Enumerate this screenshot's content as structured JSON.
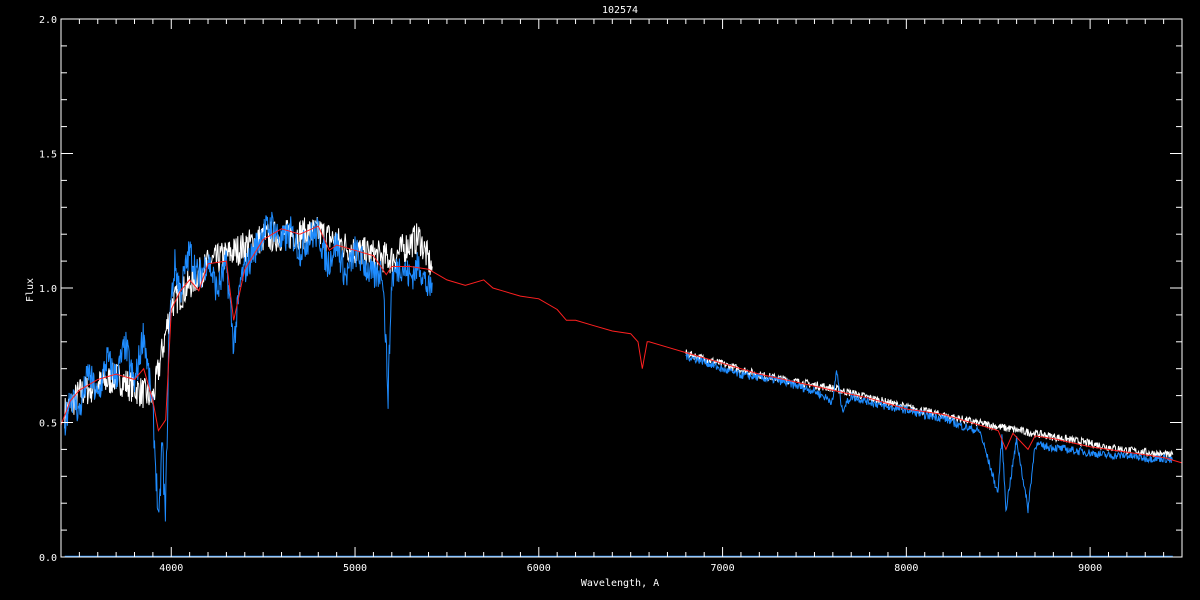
{
  "chart_data": {
    "type": "line",
    "title": "102574",
    "xlabel": "Wavelength, A",
    "ylabel": "Flux",
    "xlim": [
      3400,
      9500
    ],
    "ylim": [
      0.0,
      2.0
    ],
    "x_ticks": [
      4000,
      5000,
      6000,
      7000,
      8000,
      9000
    ],
    "x_tick_labels": [
      "4000",
      "5000",
      "6000",
      "7000",
      "8000",
      "9000"
    ],
    "x_minor_step": 100,
    "y_ticks": [
      0.0,
      0.5,
      1.0,
      1.5,
      2.0
    ],
    "y_tick_labels": [
      "0.0",
      "0.5",
      "1.0",
      "1.5",
      "2.0"
    ],
    "y_minor_step": 0.1,
    "grid": false,
    "background": "#000000",
    "series": [
      {
        "color": "#ffffff",
        "segments": [
          [
            [
              3420,
              0.55
            ],
            [
              3500,
              0.62
            ],
            [
              3700,
              0.68
            ],
            [
              3900,
              0.6
            ],
            [
              4000,
              0.95
            ],
            [
              4200,
              1.1
            ],
            [
              4500,
              1.2
            ],
            [
              4800,
              1.22
            ],
            [
              5000,
              1.15
            ],
            [
              5200,
              1.12
            ],
            [
              5300,
              1.18
            ],
            [
              5350,
              1.2
            ],
            [
              5420,
              1.08
            ]
          ],
          [
            [
              6800,
              0.76
            ],
            [
              7200,
              0.68
            ],
            [
              7600,
              0.63
            ],
            [
              8000,
              0.56
            ],
            [
              8400,
              0.5
            ],
            [
              8800,
              0.45
            ],
            [
              9200,
              0.4
            ],
            [
              9450,
              0.38
            ]
          ]
        ]
      },
      {
        "color": "#1e8cff",
        "segments": [
          [
            [
              3420,
              0.5
            ],
            [
              3450,
              0.62
            ],
            [
              3500,
              0.55
            ],
            [
              3550,
              0.7
            ],
            [
              3600,
              0.6
            ],
            [
              3650,
              0.75
            ],
            [
              3700,
              0.68
            ],
            [
              3750,
              0.8
            ],
            [
              3800,
              0.65
            ],
            [
              3850,
              0.85
            ],
            [
              3900,
              0.55
            ],
            [
              3933,
              0.12
            ],
            [
              3950,
              0.45
            ],
            [
              3968,
              0.15
            ],
            [
              3990,
              0.9
            ],
            [
              4020,
              1.1
            ],
            [
              4050,
              1.0
            ],
            [
              4100,
              1.15
            ],
            [
              4150,
              1.05
            ],
            [
              4200,
              1.12
            ],
            [
              4250,
              1.0
            ],
            [
              4300,
              1.1
            ],
            [
              4340,
              0.8
            ],
            [
              4380,
              1.05
            ],
            [
              4450,
              1.15
            ],
            [
              4500,
              1.22
            ],
            [
              4550,
              1.25
            ],
            [
              4600,
              1.18
            ],
            [
              4650,
              1.22
            ],
            [
              4700,
              1.15
            ],
            [
              4750,
              1.2
            ],
            [
              4800,
              1.22
            ],
            [
              4850,
              1.1
            ],
            [
              4900,
              1.18
            ],
            [
              4950,
              1.05
            ],
            [
              5000,
              1.15
            ],
            [
              5050,
              1.1
            ],
            [
              5100,
              1.05
            ],
            [
              5150,
              1.08
            ],
            [
              5180,
              0.62
            ],
            [
              5200,
              1.05
            ],
            [
              5250,
              1.1
            ],
            [
              5300,
              1.05
            ],
            [
              5350,
              1.1
            ],
            [
              5400,
              1.0
            ],
            [
              5420,
              1.02
            ]
          ],
          [
            [
              6800,
              0.75
            ],
            [
              6900,
              0.73
            ],
            [
              7000,
              0.7
            ],
            [
              7100,
              0.68
            ],
            [
              7200,
              0.67
            ],
            [
              7300,
              0.66
            ],
            [
              7400,
              0.64
            ],
            [
              7500,
              0.62
            ],
            [
              7600,
              0.58
            ],
            [
              7620,
              0.7
            ],
            [
              7650,
              0.55
            ],
            [
              7700,
              0.6
            ],
            [
              7800,
              0.58
            ],
            [
              7900,
              0.56
            ],
            [
              8000,
              0.55
            ],
            [
              8100,
              0.53
            ],
            [
              8200,
              0.52
            ],
            [
              8300,
              0.49
            ],
            [
              8400,
              0.47
            ],
            [
              8498,
              0.24
            ],
            [
              8520,
              0.45
            ],
            [
              8542,
              0.18
            ],
            [
              8600,
              0.44
            ],
            [
              8662,
              0.18
            ],
            [
              8700,
              0.42
            ],
            [
              8800,
              0.41
            ],
            [
              8900,
              0.4
            ],
            [
              9000,
              0.39
            ],
            [
              9100,
              0.38
            ],
            [
              9200,
              0.38
            ],
            [
              9300,
              0.37
            ],
            [
              9400,
              0.37
            ],
            [
              9450,
              0.36
            ]
          ],
          [
            [
              3420,
              0.003
            ],
            [
              9450,
              0.003
            ]
          ]
        ]
      },
      {
        "color": "#ff2020",
        "segments": [
          [
            [
              3400,
              0.49
            ],
            [
              3450,
              0.58
            ],
            [
              3500,
              0.62
            ],
            [
              3600,
              0.66
            ],
            [
              3700,
              0.68
            ],
            [
              3800,
              0.66
            ],
            [
              3850,
              0.7
            ],
            [
              3900,
              0.58
            ],
            [
              3930,
              0.47
            ],
            [
              3970,
              0.51
            ],
            [
              4000,
              0.92
            ],
            [
              4050,
              0.99
            ],
            [
              4100,
              1.03
            ],
            [
              4150,
              0.99
            ],
            [
              4200,
              1.09
            ],
            [
              4300,
              1.1
            ],
            [
              4340,
              0.88
            ],
            [
              4400,
              1.07
            ],
            [
              4500,
              1.18
            ],
            [
              4600,
              1.22
            ],
            [
              4700,
              1.2
            ],
            [
              4800,
              1.23
            ],
            [
              4860,
              1.14
            ],
            [
              4900,
              1.16
            ],
            [
              5000,
              1.14
            ],
            [
              5100,
              1.12
            ],
            [
              5170,
              1.05
            ],
            [
              5200,
              1.08
            ],
            [
              5300,
              1.08
            ],
            [
              5400,
              1.07
            ],
            [
              5500,
              1.03
            ],
            [
              5600,
              1.01
            ],
            [
              5700,
              1.03
            ],
            [
              5750,
              1.0
            ],
            [
              5800,
              0.99
            ],
            [
              5900,
              0.97
            ],
            [
              6000,
              0.96
            ],
            [
              6100,
              0.92
            ],
            [
              6150,
              0.88
            ],
            [
              6200,
              0.88
            ],
            [
              6300,
              0.86
            ],
            [
              6400,
              0.84
            ],
            [
              6500,
              0.83
            ],
            [
              6540,
              0.8
            ],
            [
              6563,
              0.7
            ],
            [
              6590,
              0.8
            ],
            [
              6600,
              0.8
            ],
            [
              6700,
              0.78
            ],
            [
              6800,
              0.76
            ],
            [
              7000,
              0.72
            ],
            [
              7200,
              0.68
            ],
            [
              7400,
              0.65
            ],
            [
              7600,
              0.62
            ],
            [
              7800,
              0.59
            ],
            [
              8000,
              0.55
            ],
            [
              8200,
              0.53
            ],
            [
              8400,
              0.49
            ],
            [
              8500,
              0.47
            ],
            [
              8542,
              0.4
            ],
            [
              8580,
              0.46
            ],
            [
              8662,
              0.4
            ],
            [
              8700,
              0.45
            ],
            [
              8800,
              0.44
            ],
            [
              9000,
              0.41
            ],
            [
              9200,
              0.39
            ],
            [
              9400,
              0.37
            ],
            [
              9500,
              0.35
            ]
          ]
        ]
      }
    ]
  }
}
